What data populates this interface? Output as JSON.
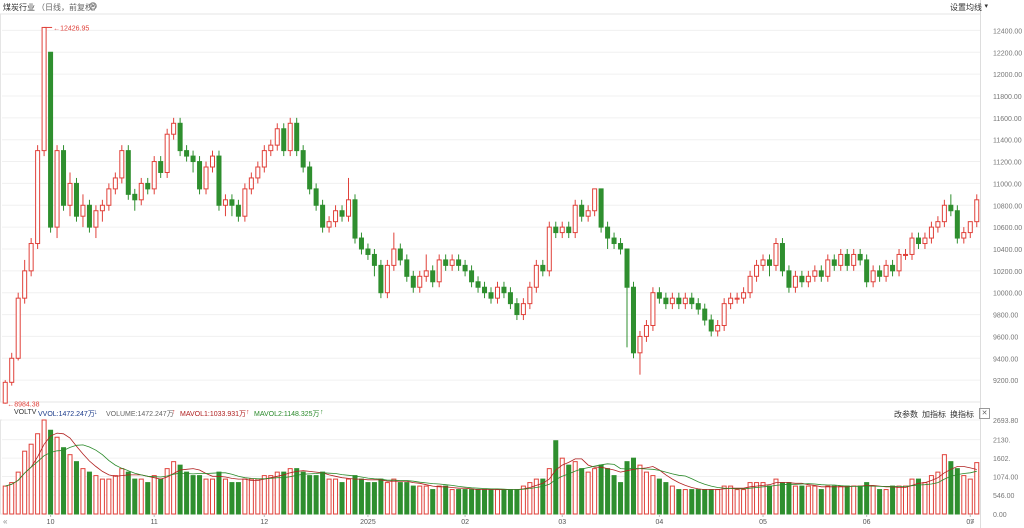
{
  "header": {
    "title": "煤炭行业",
    "subtitle": "（日线，前复权）",
    "ma_settings_label": "设置均线",
    "ma_caret": "▾"
  },
  "colors": {
    "up": "#e0413a",
    "down": "#2f8f2f",
    "ma1": "#b02020",
    "ma2": "#2a8a2a",
    "vol_label": "#1a3a8a"
  },
  "price_axis": {
    "ticks": [
      "12400.00",
      "12200.00",
      "12000.00",
      "11800.00",
      "11600.00",
      "11400.00",
      "11200.00",
      "11000.00",
      "10800.00",
      "10600.00",
      "10400.00",
      "10200.00",
      "10000.00",
      "9800.00",
      "9600.00",
      "9400.00",
      "9200.00"
    ]
  },
  "volume_axis": {
    "ticks": [
      "2693.80",
      "2130.",
      "1602.",
      "1074.00",
      "546.00",
      "0.00"
    ]
  },
  "annotations": {
    "high": "12426.95",
    "low": "8984.38"
  },
  "volume_header": {
    "indicator": "VOLTV",
    "vvol": "VVOL:1472.247万",
    "volume": "VOLUME:1472.247万",
    "mavol1": "MAVOL1:1033.931万",
    "mavol2": "MAVOL2:1148.325万",
    "btn_params": "改参数",
    "btn_add": "加指标",
    "btn_switch": "换指标",
    "close": "✕"
  },
  "x_axis": {
    "labels": [
      "10",
      "11",
      "12",
      "2025",
      "02",
      "03",
      "04",
      "05",
      "06",
      "07"
    ],
    "scroll_left": "«",
    "scroll_right": "»"
  },
  "chart_data": {
    "type": "candlestick",
    "title": "煤炭行业",
    "ylim": [
      9000,
      12550
    ],
    "volume_ylim": [
      0,
      2693.8
    ],
    "series": [
      [
        8990,
        9180,
        8984.38,
        9200,
        800
      ],
      [
        9180,
        9400,
        9150,
        9450,
        900
      ],
      [
        9400,
        9950,
        9380,
        10000,
        1200
      ],
      [
        9950,
        10200,
        9900,
        10300,
        1800
      ],
      [
        10200,
        10450,
        10150,
        10500,
        2000
      ],
      [
        10450,
        11300,
        10400,
        11350,
        2300
      ],
      [
        11300,
        12426.95,
        11250,
        12426.95,
        2693.8
      ],
      [
        12200,
        10600,
        10550,
        12200,
        2400
      ],
      [
        10600,
        11300,
        10500,
        11350,
        2200
      ],
      [
        11300,
        10800,
        10750,
        11350,
        1900
      ],
      [
        10800,
        11000,
        10700,
        11100,
        1700
      ],
      [
        11000,
        10700,
        10650,
        11050,
        1500
      ],
      [
        10700,
        10800,
        10600,
        10900,
        1300
      ],
      [
        10800,
        10600,
        10550,
        10850,
        1200
      ],
      [
        10600,
        10750,
        10500,
        10800,
        1100
      ],
      [
        10750,
        10800,
        10650,
        10850,
        1000
      ],
      [
        10800,
        10950,
        10750,
        11000,
        1000
      ],
      [
        10950,
        11050,
        10900,
        11100,
        1100
      ],
      [
        11050,
        11300,
        11000,
        11350,
        1300
      ],
      [
        11300,
        10900,
        10850,
        11350,
        1200
      ],
      [
        10900,
        10850,
        10750,
        10950,
        1000
      ],
      [
        10850,
        11000,
        10800,
        11050,
        1000
      ],
      [
        11000,
        10950,
        10900,
        11050,
        900
      ],
      [
        10950,
        11200,
        10900,
        11250,
        1100
      ],
      [
        11200,
        11100,
        11050,
        11250,
        1000
      ],
      [
        11100,
        11450,
        11050,
        11500,
        1300
      ],
      [
        11450,
        11550,
        11400,
        11600,
        1500
      ],
      [
        11550,
        11300,
        11250,
        11600,
        1400
      ],
      [
        11300,
        11250,
        11200,
        11350,
        1200
      ],
      [
        11250,
        11200,
        11100,
        11300,
        1100
      ],
      [
        11200,
        10950,
        10900,
        11250,
        1100
      ],
      [
        10950,
        11150,
        10900,
        11200,
        1000
      ],
      [
        11150,
        11250,
        11100,
        11300,
        1000
      ],
      [
        11250,
        10800,
        10750,
        11300,
        1200
      ],
      [
        10800,
        10850,
        10700,
        10900,
        1000
      ],
      [
        10850,
        10800,
        10700,
        10900,
        900
      ],
      [
        10800,
        10700,
        10650,
        10850,
        900
      ],
      [
        10700,
        10950,
        10650,
        11000,
        1000
      ],
      [
        10950,
        11050,
        10900,
        11100,
        1000
      ],
      [
        11050,
        11150,
        11000,
        11200,
        1000
      ],
      [
        11150,
        11300,
        11100,
        11350,
        1100
      ],
      [
        11300,
        11350,
        11250,
        11400,
        1100
      ],
      [
        11350,
        11500,
        11300,
        11550,
        1200
      ],
      [
        11500,
        11300,
        11250,
        11550,
        1200
      ],
      [
        11300,
        11550,
        11250,
        11600,
        1300
      ],
      [
        11550,
        11300,
        11250,
        11600,
        1300
      ],
      [
        11300,
        11150,
        11100,
        11350,
        1200
      ],
      [
        11150,
        10950,
        10900,
        11200,
        1100
      ],
      [
        10950,
        10800,
        10750,
        11000,
        1100
      ],
      [
        10800,
        10600,
        10550,
        10850,
        1200
      ],
      [
        10600,
        10650,
        10550,
        10700,
        1000
      ],
      [
        10650,
        10750,
        10600,
        10800,
        1000
      ],
      [
        10750,
        10700,
        10650,
        10800,
        900
      ],
      [
        10700,
        10850,
        10650,
        11050,
        1000
      ],
      [
        10850,
        10500,
        10450,
        10900,
        1100
      ],
      [
        10500,
        10400,
        10350,
        10550,
        1000
      ],
      [
        10400,
        10350,
        10300,
        10450,
        900
      ],
      [
        10350,
        10250,
        10150,
        10400,
        900
      ],
      [
        10250,
        10000,
        9950,
        10300,
        1000
      ],
      [
        10000,
        10250,
        9950,
        10300,
        900
      ],
      [
        10250,
        10400,
        10200,
        10550,
        1000
      ],
      [
        10400,
        10300,
        10250,
        10450,
        900
      ],
      [
        10300,
        10150,
        10100,
        10350,
        900
      ],
      [
        10150,
        10050,
        10000,
        10200,
        800
      ],
      [
        10050,
        10150,
        10000,
        10200,
        800
      ],
      [
        10150,
        10200,
        10100,
        10350,
        800
      ],
      [
        10200,
        10100,
        10050,
        10250,
        700
      ],
      [
        10100,
        10300,
        10050,
        10350,
        800
      ],
      [
        10300,
        10250,
        10200,
        10350,
        800
      ],
      [
        10250,
        10300,
        10200,
        10350,
        700
      ],
      [
        10300,
        10250,
        10200,
        10350,
        700
      ],
      [
        10250,
        10200,
        10150,
        10300,
        700
      ],
      [
        10200,
        10100,
        10050,
        10250,
        700
      ],
      [
        10100,
        10050,
        10000,
        10150,
        700
      ],
      [
        10050,
        10000,
        9950,
        10100,
        700
      ],
      [
        10000,
        9950,
        9900,
        10050,
        700
      ],
      [
        9950,
        10050,
        9900,
        10100,
        700
      ],
      [
        10050,
        10000,
        9950,
        10100,
        700
      ],
      [
        10000,
        9900,
        9850,
        10050,
        700
      ],
      [
        9900,
        9800,
        9750,
        9950,
        700
      ],
      [
        9800,
        9900,
        9750,
        9950,
        800
      ],
      [
        9900,
        10050,
        9850,
        10100,
        900
      ],
      [
        10050,
        10250,
        10000,
        10300,
        1000
      ],
      [
        10250,
        10200,
        10150,
        10300,
        1000
      ],
      [
        10200,
        10600,
        10150,
        10650,
        1300
      ],
      [
        10600,
        10550,
        10500,
        10650,
        2100
      ],
      [
        10550,
        10600,
        10500,
        10650,
        1600
      ],
      [
        10600,
        10550,
        10500,
        10650,
        1400
      ],
      [
        10550,
        10800,
        10500,
        10850,
        1500
      ],
      [
        10800,
        10700,
        10650,
        10850,
        1300
      ],
      [
        10700,
        10750,
        10650,
        10800,
        1200
      ],
      [
        10750,
        10950,
        10700,
        10950,
        1300
      ],
      [
        10950,
        10600,
        10550,
        10950,
        1400
      ],
      [
        10600,
        10500,
        10400,
        10650,
        1300
      ],
      [
        10500,
        10450,
        10400,
        10550,
        1100
      ],
      [
        10450,
        10400,
        10350,
        10500,
        900
      ],
      [
        10400,
        10050,
        9500,
        10100,
        1500
      ],
      [
        10050,
        9450,
        9400,
        10100,
        1600
      ],
      [
        9450,
        9600,
        9250,
        9650,
        1400
      ],
      [
        9600,
        9700,
        9550,
        9750,
        1200
      ],
      [
        9700,
        10000,
        9650,
        10050,
        1100
      ],
      [
        10000,
        9950,
        9900,
        10050,
        1000
      ],
      [
        9950,
        9900,
        9850,
        10000,
        900
      ],
      [
        9900,
        9950,
        9850,
        10000,
        800
      ],
      [
        9950,
        9900,
        9850,
        10000,
        700
      ],
      [
        9900,
        9950,
        9850,
        10000,
        700
      ],
      [
        9950,
        9900,
        9850,
        10000,
        700
      ],
      [
        9900,
        9850,
        9800,
        9950,
        700
      ],
      [
        9850,
        9750,
        9700,
        9900,
        700
      ],
      [
        9750,
        9650,
        9600,
        9800,
        700
      ],
      [
        9650,
        9700,
        9600,
        9750,
        700
      ],
      [
        9700,
        9900,
        9650,
        9950,
        800
      ],
      [
        9900,
        9950,
        9850,
        10000,
        800
      ],
      [
        9950,
        9950,
        9900,
        10000,
        700
      ],
      [
        9950,
        10000,
        9900,
        10050,
        700
      ],
      [
        10000,
        10150,
        9950,
        10200,
        900
      ],
      [
        10150,
        10250,
        10100,
        10300,
        900
      ],
      [
        10250,
        10300,
        10200,
        10350,
        900
      ],
      [
        10300,
        10250,
        10150,
        10350,
        800
      ],
      [
        10250,
        10450,
        10200,
        10500,
        1000
      ],
      [
        10450,
        10200,
        10150,
        10500,
        900
      ],
      [
        10200,
        10050,
        10000,
        10250,
        900
      ],
      [
        10050,
        10150,
        10000,
        10200,
        800
      ],
      [
        10150,
        10100,
        10050,
        10200,
        800
      ],
      [
        10100,
        10150,
        10050,
        10200,
        800
      ],
      [
        10150,
        10200,
        10100,
        10250,
        800
      ],
      [
        10200,
        10150,
        10100,
        10250,
        700
      ],
      [
        10150,
        10300,
        10100,
        10350,
        800
      ],
      [
        10300,
        10250,
        10200,
        10350,
        800
      ],
      [
        10250,
        10350,
        10200,
        10400,
        800
      ],
      [
        10350,
        10250,
        10200,
        10400,
        800
      ],
      [
        10250,
        10350,
        10200,
        10400,
        800
      ],
      [
        10350,
        10300,
        10250,
        10400,
        800
      ],
      [
        10300,
        10100,
        10050,
        10350,
        900
      ],
      [
        10100,
        10200,
        10050,
        10250,
        800
      ],
      [
        10200,
        10150,
        10100,
        10250,
        700
      ],
      [
        10150,
        10250,
        10100,
        10300,
        700
      ],
      [
        10250,
        10200,
        10150,
        10300,
        800
      ],
      [
        10200,
        10350,
        10150,
        10400,
        800
      ],
      [
        10350,
        10350,
        10300,
        10400,
        800
      ],
      [
        10350,
        10500,
        10300,
        10550,
        1000
      ],
      [
        10500,
        10450,
        10400,
        10550,
        1000
      ],
      [
        10450,
        10500,
        10400,
        10550,
        900
      ],
      [
        10500,
        10600,
        10450,
        10650,
        1100
      ],
      [
        10600,
        10650,
        10550,
        10700,
        1200
      ],
      [
        10650,
        10800,
        10600,
        10850,
        1700
      ],
      [
        10800,
        10750,
        10700,
        10900,
        1500
      ],
      [
        10750,
        10500,
        10450,
        10800,
        1300
      ],
      [
        10500,
        10550,
        10450,
        10600,
        1100
      ],
      [
        10550,
        10650,
        10500,
        10650,
        1000
      ],
      [
        10650,
        10850,
        10600,
        10900,
        1472.247
      ]
    ],
    "ma_volume_1_label": "MAVOL1",
    "ma_volume_2_label": "MAVOL2"
  }
}
